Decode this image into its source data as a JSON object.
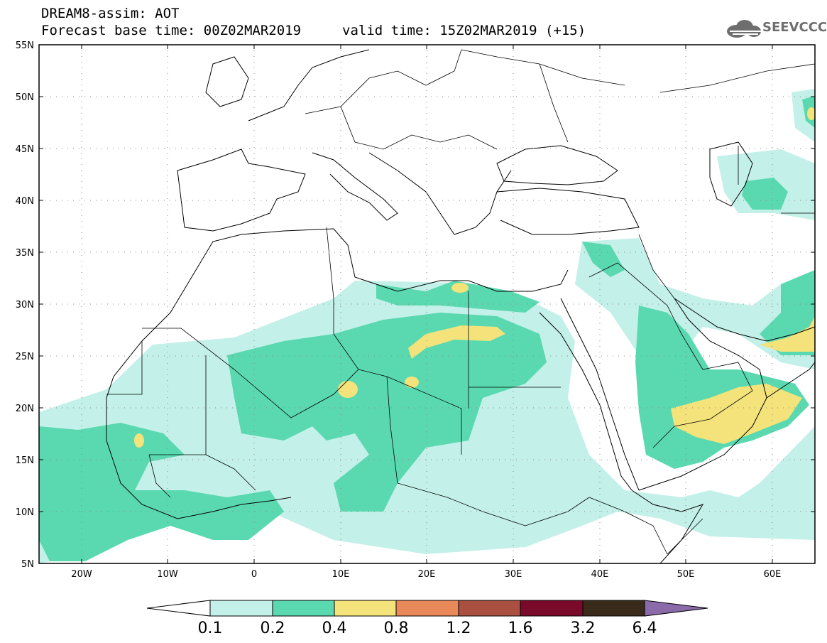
{
  "header": {
    "title": "DREAM8-assim: AOT",
    "base_time": "Forecast base time: 00Z02MAR2019",
    "valid_time": "valid time: 15Z02MAR2019 (+15)"
  },
  "logo": {
    "text": "SEEVCCC",
    "icon": "cloud-logo-icon",
    "color": "#6e6e6e"
  },
  "map": {
    "lat_labels": [
      "55N",
      "50N",
      "45N",
      "40N",
      "35N",
      "30N",
      "25N",
      "20N",
      "15N",
      "10N",
      "5N"
    ],
    "lon_labels": [
      "20W",
      "10W",
      "0",
      "10E",
      "20E",
      "30E",
      "40E",
      "50E",
      "60E"
    ]
  },
  "colorbar": {
    "labels": [
      "0.1",
      "0.2",
      "0.4",
      "0.8",
      "1.2",
      "1.6",
      "3.2",
      "6.4"
    ],
    "colors": [
      "#ffffff",
      "#c3f0e8",
      "#5ad9b0",
      "#f3e37a",
      "#e9895a",
      "#a95040",
      "#7a0a2a",
      "#3a2a1a",
      "#8a6aa8"
    ]
  },
  "fill_colors": {
    "low": "#c3f0e8",
    "mid": "#5ad9b0",
    "high": "#f3e37a"
  }
}
